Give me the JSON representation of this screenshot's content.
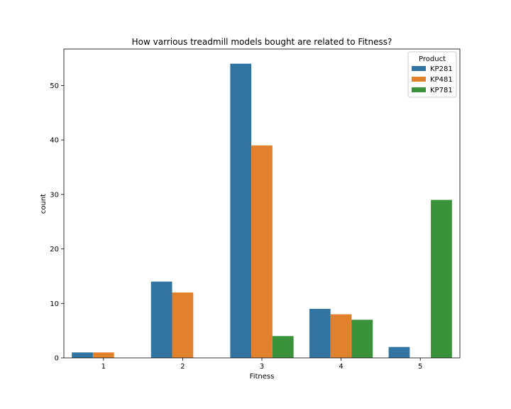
{
  "chart_data": {
    "type": "bar",
    "title": "How varrious treadmill models bought are related to Fitness?",
    "xlabel": "Fitness",
    "ylabel": "count",
    "categories": [
      "1",
      "2",
      "3",
      "4",
      "5"
    ],
    "series": [
      {
        "name": "KP281",
        "color": "#3274a1",
        "values": [
          1,
          14,
          54,
          9,
          2
        ]
      },
      {
        "name": "KP481",
        "color": "#e1812c",
        "values": [
          1,
          12,
          39,
          8,
          0
        ]
      },
      {
        "name": "KP781",
        "color": "#3a923a",
        "values": [
          0,
          0,
          4,
          7,
          29
        ]
      }
    ],
    "ylim": [
      0,
      56.7
    ],
    "yticks": [
      0,
      10,
      20,
      30,
      40,
      50
    ],
    "legend": {
      "title": "Product",
      "position": "top-right"
    },
    "grid": false
  }
}
